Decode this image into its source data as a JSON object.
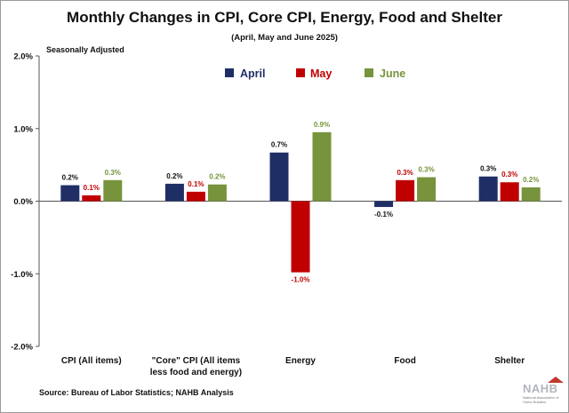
{
  "chart_data": {
    "type": "bar",
    "title": "Monthly Changes in CPI, Core CPI, Energy, Food and Shelter",
    "subtitle": "(April, May and June 2025)",
    "annotation": "Seasonally Adjusted",
    "categories": [
      "CPI (All items)",
      "\"Core\" CPI (All items less food and energy)",
      "Energy",
      "Food",
      "Shelter"
    ],
    "category_lines": [
      [
        "CPI (All items)"
      ],
      [
        "\"Core\" CPI (All items",
        "less food and energy)"
      ],
      [
        "Energy"
      ],
      [
        "Food"
      ],
      [
        "Shelter"
      ]
    ],
    "series": [
      {
        "name": "April",
        "color": "#1f2f66",
        "values": [
          0.22,
          0.24,
          0.67,
          -0.08,
          0.34
        ],
        "labels": [
          "0.2%",
          "0.2%",
          "0.7%",
          "-0.1%",
          "0.3%"
        ]
      },
      {
        "name": "May",
        "color": "#c00000",
        "values": [
          0.08,
          0.13,
          -0.98,
          0.29,
          0.26
        ],
        "labels": [
          "0.1%",
          "0.1%",
          "-1.0%",
          "0.3%",
          "0.3%"
        ]
      },
      {
        "name": "June",
        "color": "#77933c",
        "values": [
          0.29,
          0.23,
          0.95,
          0.33,
          0.19
        ],
        "labels": [
          "0.3%",
          "0.2%",
          "0.9%",
          "0.3%",
          "0.2%"
        ]
      }
    ],
    "ylim": [
      -2.0,
      2.0
    ],
    "yticks": [
      2.0,
      1.0,
      0.0,
      -1.0,
      -2.0
    ],
    "ytick_labels": [
      "2.0%",
      "1.0%",
      "0.0%",
      "-1.0%",
      "-2.0%"
    ],
    "legend": "top-center",
    "grid": false
  },
  "source": "Source: Bureau of Labor Statistics; NAHB Analysis",
  "logo": {
    "text": "NAHB",
    "subtext": "National Association of Home Builders"
  }
}
